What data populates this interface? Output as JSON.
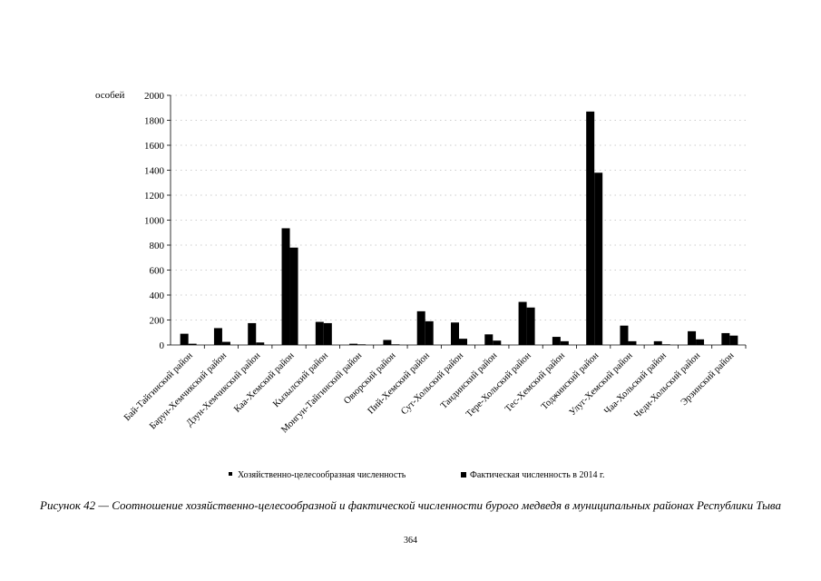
{
  "chart_data": {
    "type": "bar",
    "ylabel": "особей",
    "ylim": [
      0,
      2000
    ],
    "yticks": [
      0,
      200,
      400,
      600,
      800,
      1000,
      1200,
      1400,
      1600,
      1800,
      2000
    ],
    "grid": true,
    "legend_position": "bottom",
    "categories": [
      "Бай-Тайгинский район",
      "Барун-Хемчикский район",
      "Дзун-Хемчикский район",
      "Каа-Хемский район",
      "Кызылский район",
      "Монгун-Тайгинский район",
      "Овюрский район",
      "Пий-Хемский район",
      "Сут-Хольский район",
      "Тандинский район",
      "Тере-Хольский район",
      "Тес-Хемский район",
      "Тоджинский район",
      "Улуг-Хемский район",
      "Чаа-Хольский район",
      "Чеди-Хольский район",
      "Эрзинский район"
    ],
    "series": [
      {
        "name": "Хозяйственно-целесообразная численность",
        "color": "#000000",
        "values": [
          90,
          135,
          175,
          935,
          185,
          10,
          40,
          270,
          180,
          85,
          345,
          65,
          1870,
          155,
          30,
          110,
          95
        ]
      },
      {
        "name": "Фактическая численность в 2014 г.",
        "color": "#000000",
        "values": [
          10,
          25,
          20,
          780,
          175,
          5,
          5,
          190,
          50,
          35,
          300,
          30,
          1380,
          30,
          5,
          45,
          75
        ]
      }
    ]
  },
  "caption": "Рисунок 42 — Соотношение хозяйственно-целесообразной и фактической численности бурого медведя в муниципальных районах Республики Тыва",
  "page_number": "364"
}
